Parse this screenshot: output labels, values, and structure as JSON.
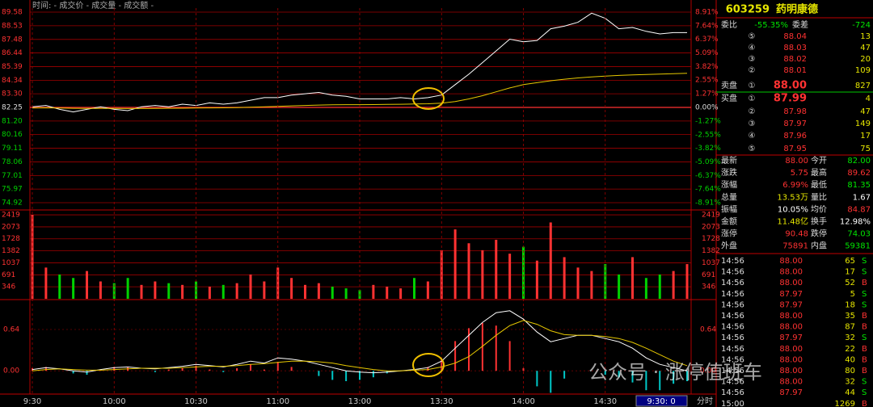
{
  "legend_text": "时间: - 成交价 - 成交量 - 成交额 -",
  "chart_data": [
    {
      "type": "line",
      "x": [
        0,
        5,
        10,
        15,
        20,
        25,
        30,
        35,
        40,
        45,
        50,
        55,
        60,
        65,
        70,
        75,
        80,
        85,
        90,
        95,
        100,
        105,
        110,
        115,
        120,
        125,
        130,
        135,
        140,
        145,
        150,
        155,
        160,
        165,
        170,
        175,
        180,
        185,
        190,
        195,
        200,
        205,
        210,
        215,
        220,
        225,
        230,
        235,
        240
      ],
      "xlim": [
        0,
        240
      ],
      "ylim": [
        74.92,
        89.58
      ],
      "yticks": [
        89.58,
        88.53,
        87.48,
        86.44,
        85.39,
        84.34,
        {
          "value": 83.3,
          "label": "83.30"
        },
        82.25,
        {
          "value": 81.2,
          "label": "81.20"
        },
        80.16,
        79.11,
        78.06,
        77.01,
        75.97,
        74.92
      ],
      "y2lim": [
        -8.91,
        8.91
      ],
      "y2ticks": [
        {
          "value": 8.91,
          "label": "8.91%"
        },
        {
          "value": 7.64,
          "label": "7.64%"
        },
        {
          "value": 6.37,
          "label": "6.37%"
        },
        {
          "value": 5.09,
          "label": "5.09%"
        },
        {
          "value": 3.82,
          "label": "3.82%"
        },
        {
          "value": 2.55,
          "label": "2.55%"
        },
        {
          "value": 1.27,
          "label": "1.27%"
        },
        {
          "value": 0,
          "label": "0.00%"
        },
        {
          "value": -1.27,
          "label": "-1.27%"
        },
        {
          "value": -2.55,
          "label": "-2.55%"
        },
        {
          "value": -3.82,
          "label": "-3.82%"
        },
        {
          "value": -5.09,
          "label": "-5.09%"
        },
        {
          "value": -6.37,
          "label": "-6.37%"
        },
        {
          "value": -7.64,
          "label": "-7.64%"
        },
        {
          "value": -8.91,
          "label": "-8.91%"
        }
      ],
      "grid": true,
      "series": [
        {
          "color": "#ffffff",
          "values": [
            82.3,
            82.4,
            82.1,
            81.9,
            82.1,
            82.3,
            82.1,
            82.0,
            82.3,
            82.4,
            82.3,
            82.5,
            82.4,
            82.6,
            82.5,
            82.6,
            82.8,
            83.0,
            83.0,
            83.2,
            83.3,
            83.4,
            83.2,
            83.1,
            82.9,
            82.9,
            82.9,
            83.0,
            82.9,
            83.0,
            83.2,
            84.0,
            84.8,
            85.7,
            86.6,
            87.5,
            87.3,
            87.4,
            88.3,
            88.5,
            88.8,
            89.5,
            89.1,
            88.3,
            88.4,
            88.1,
            87.9,
            88.0,
            88.0
          ]
        },
        {
          "color": "#e6c800",
          "values": [
            82.2,
            82.22,
            82.2,
            82.18,
            82.17,
            82.17,
            82.17,
            82.16,
            82.16,
            82.17,
            82.18,
            82.19,
            82.2,
            82.21,
            82.22,
            82.24,
            82.27,
            82.3,
            82.33,
            82.37,
            82.4,
            82.43,
            82.45,
            82.46,
            82.46,
            82.47,
            82.48,
            82.49,
            82.51,
            82.53,
            82.58,
            82.7,
            82.9,
            83.15,
            83.45,
            83.75,
            84.0,
            84.15,
            84.3,
            84.42,
            84.52,
            84.6,
            84.66,
            84.71,
            84.75,
            84.78,
            84.81,
            84.84,
            84.87
          ]
        }
      ]
    },
    {
      "type": "bar",
      "x": [
        0,
        5,
        10,
        15,
        20,
        25,
        30,
        35,
        40,
        45,
        50,
        55,
        60,
        65,
        70,
        75,
        80,
        85,
        90,
        95,
        100,
        105,
        110,
        115,
        120,
        125,
        130,
        135,
        140,
        145,
        150,
        155,
        160,
        165,
        170,
        175,
        180,
        185,
        190,
        195,
        200,
        205,
        210,
        215,
        220,
        225,
        230,
        235,
        240
      ],
      "xlim": [
        0,
        240
      ],
      "ylim": [
        0,
        2490
      ],
      "yticks": [
        2419,
        2073,
        1728,
        1382,
        1037,
        691,
        346
      ],
      "up_color": "#ff3232",
      "down_color": "#00d200",
      "values": [
        2419,
        900,
        700,
        600,
        800,
        500,
        450,
        600,
        400,
        500,
        450,
        400,
        500,
        350,
        400,
        450,
        700,
        500,
        900,
        600,
        400,
        450,
        350,
        300,
        250,
        400,
        350,
        300,
        600,
        500,
        1400,
        2000,
        1600,
        1400,
        1700,
        1300,
        1500,
        1100,
        2200,
        1200,
        900,
        800,
        1000,
        700,
        1200,
        600,
        700,
        800,
        1000
      ]
    },
    {
      "type": "macd",
      "x": [
        0,
        5,
        10,
        15,
        20,
        25,
        30,
        35,
        40,
        45,
        50,
        55,
        60,
        65,
        70,
        75,
        80,
        85,
        90,
        95,
        100,
        105,
        110,
        115,
        120,
        125,
        130,
        135,
        140,
        145,
        150,
        155,
        160,
        165,
        170,
        175,
        180,
        185,
        190,
        195,
        200,
        205,
        210,
        215,
        220,
        225,
        230,
        235,
        240
      ],
      "xlim": [
        0,
        240
      ],
      "xticks": [
        {
          "value": 0,
          "label": "9:30"
        },
        {
          "value": 30,
          "label": "10:00"
        },
        {
          "value": 60,
          "label": "10:30"
        },
        {
          "value": 90,
          "label": "11:00"
        },
        {
          "value": 120,
          "label": "13:00"
        },
        {
          "value": 150,
          "label": "13:30"
        },
        {
          "value": 180,
          "label": "14:00"
        },
        {
          "value": 210,
          "label": "14:30"
        }
      ],
      "ylim": [
        -0.36,
        1.09
      ],
      "yticks": [
        0.64,
        {
          "value": 0,
          "label": "0.00"
        }
      ],
      "up_color": "#ff3232",
      "down_color": "#00c8c8",
      "histogram": [
        0.04,
        0.06,
        0,
        -0.04,
        -0.06,
        0.02,
        0.06,
        0.06,
        0,
        -0.02,
        0.02,
        0.04,
        0.08,
        0.02,
        -0.02,
        0.04,
        0.1,
        0.02,
        0.14,
        0.06,
        0,
        -0.08,
        -0.14,
        -0.16,
        -0.14,
        -0.1,
        -0.04,
        0,
        0.02,
        0.06,
        0.18,
        0.46,
        0.66,
        0.74,
        0.7,
        0.46,
        0.04,
        -0.24,
        -0.34,
        -0.12,
        0,
        0,
        -0.06,
        -0.1,
        -0.18,
        -0.3,
        -0.3,
        -0.2,
        -0.16
      ],
      "series": [
        {
          "color": "#ffffff",
          "values": [
            0.02,
            0.05,
            0.03,
            0,
            -0.02,
            0.02,
            0.05,
            0.06,
            0.04,
            0.03,
            0.05,
            0.07,
            0.1,
            0.08,
            0.06,
            0.1,
            0.15,
            0.12,
            0.2,
            0.18,
            0.15,
            0.1,
            0.05,
            0,
            -0.02,
            -0.03,
            -0.02,
            0,
            0.02,
            0.05,
            0.15,
            0.35,
            0.55,
            0.75,
            0.9,
            0.93,
            0.8,
            0.6,
            0.45,
            0.5,
            0.55,
            0.55,
            0.5,
            0.45,
            0.35,
            0.2,
            0.1,
            0.05,
            0
          ]
        },
        {
          "color": "#e6c800",
          "values": [
            0,
            0.02,
            0.03,
            0.02,
            0.01,
            0.01,
            0.02,
            0.03,
            0.04,
            0.04,
            0.04,
            0.05,
            0.06,
            0.07,
            0.07,
            0.08,
            0.1,
            0.11,
            0.13,
            0.15,
            0.15,
            0.14,
            0.12,
            0.08,
            0.05,
            0.02,
            0,
            0,
            0.01,
            0.02,
            0.06,
            0.12,
            0.22,
            0.38,
            0.55,
            0.7,
            0.78,
            0.72,
            0.62,
            0.56,
            0.55,
            0.55,
            0.53,
            0.5,
            0.44,
            0.35,
            0.25,
            0.15,
            0.08
          ]
        }
      ]
    }
  ],
  "status_bar": {
    "time": "9:30: 0",
    "mode": "分时"
  },
  "watermark": "公众号 · 涨停值班车",
  "quote": {
    "code": "603259",
    "name": "药明康德",
    "ratio_label": "委比",
    "ratio": "-55.35%",
    "diff_label": "委差",
    "diff": "-724",
    "asks": [
      {
        "level": "⑤",
        "price": "88.04",
        "volume": "13"
      },
      {
        "level": "④",
        "price": "88.03",
        "volume": "47"
      },
      {
        "level": "③",
        "price": "88.02",
        "volume": "20"
      },
      {
        "level": "②",
        "price": "88.01",
        "volume": "109"
      },
      {
        "side": "卖盘",
        "level": "①",
        "price": "88.00",
        "volume": "827"
      }
    ],
    "bids": [
      {
        "side": "买盘",
        "level": "①",
        "price": "87.99",
        "volume": "4"
      },
      {
        "level": "②",
        "price": "87.98",
        "volume": "47"
      },
      {
        "level": "③",
        "price": "87.97",
        "volume": "149"
      },
      {
        "level": "④",
        "price": "87.96",
        "volume": "17"
      },
      {
        "level": "⑤",
        "price": "87.95",
        "volume": "75"
      }
    ],
    "stats": [
      {
        "label": "最新",
        "value": "88.00",
        "color": "#ff3232",
        "label2": "今开",
        "value2": "82.00",
        "color2": "#00e600"
      },
      {
        "label": "涨跌",
        "value": "5.75",
        "color": "#ff3232",
        "label2": "最高",
        "value2": "89.62",
        "color2": "#ff3232"
      },
      {
        "label": "涨幅",
        "value": "6.99%",
        "color": "#ff3232",
        "label2": "最低",
        "value2": "81.35",
        "color2": "#00e600"
      },
      {
        "label": "总量",
        "value": "13.53万",
        "color": "#e6e600",
        "label2": "量比",
        "value2": "1.67",
        "color2": "#ffffff"
      },
      {
        "label": "振幅",
        "value": "10.05%",
        "color": "#ffffff",
        "label2": "均价",
        "value2": "84.87",
        "color2": "#ff3232"
      },
      {
        "label": "金额",
        "value": "11.48亿",
        "color": "#e6e600",
        "label2": "换手",
        "value2": "12.98%",
        "color2": "#ffffff"
      },
      {
        "label": "涨停",
        "value": "90.48",
        "color": "#ff3232",
        "label2": "跌停",
        "value2": "74.03",
        "color2": "#00e600"
      },
      {
        "label": "外盘",
        "value": "75891",
        "color": "#ff3232",
        "label2": "内盘",
        "value2": "59381",
        "color2": "#00e600"
      }
    ],
    "trades": [
      {
        "time": "14:56",
        "price": "88.00",
        "volume": "65",
        "side": "S"
      },
      {
        "time": "14:56",
        "price": "88.00",
        "volume": "17",
        "side": "S"
      },
      {
        "time": "14:56",
        "price": "88.00",
        "volume": "52",
        "side": "B"
      },
      {
        "time": "14:56",
        "price": "87.97",
        "volume": "5",
        "side": "S"
      },
      {
        "time": "14:56",
        "price": "87.97",
        "volume": "18",
        "side": "S"
      },
      {
        "time": "14:56",
        "price": "88.00",
        "volume": "35",
        "side": "B"
      },
      {
        "time": "14:56",
        "price": "88.00",
        "volume": "87",
        "side": "B"
      },
      {
        "time": "14:56",
        "price": "87.97",
        "volume": "32",
        "side": "S"
      },
      {
        "time": "14:56",
        "price": "88.00",
        "volume": "22",
        "side": "B"
      },
      {
        "time": "14:56",
        "price": "88.00",
        "volume": "40",
        "side": "B"
      },
      {
        "time": "14:56",
        "price": "88.00",
        "volume": "80",
        "side": "B"
      },
      {
        "time": "14:56",
        "price": "88.00",
        "volume": "32",
        "side": "S"
      },
      {
        "time": "14:56",
        "price": "87.97",
        "volume": "44",
        "side": "S"
      },
      {
        "time": "15:00",
        "volume": "1269",
        "side": "B"
      }
    ]
  }
}
